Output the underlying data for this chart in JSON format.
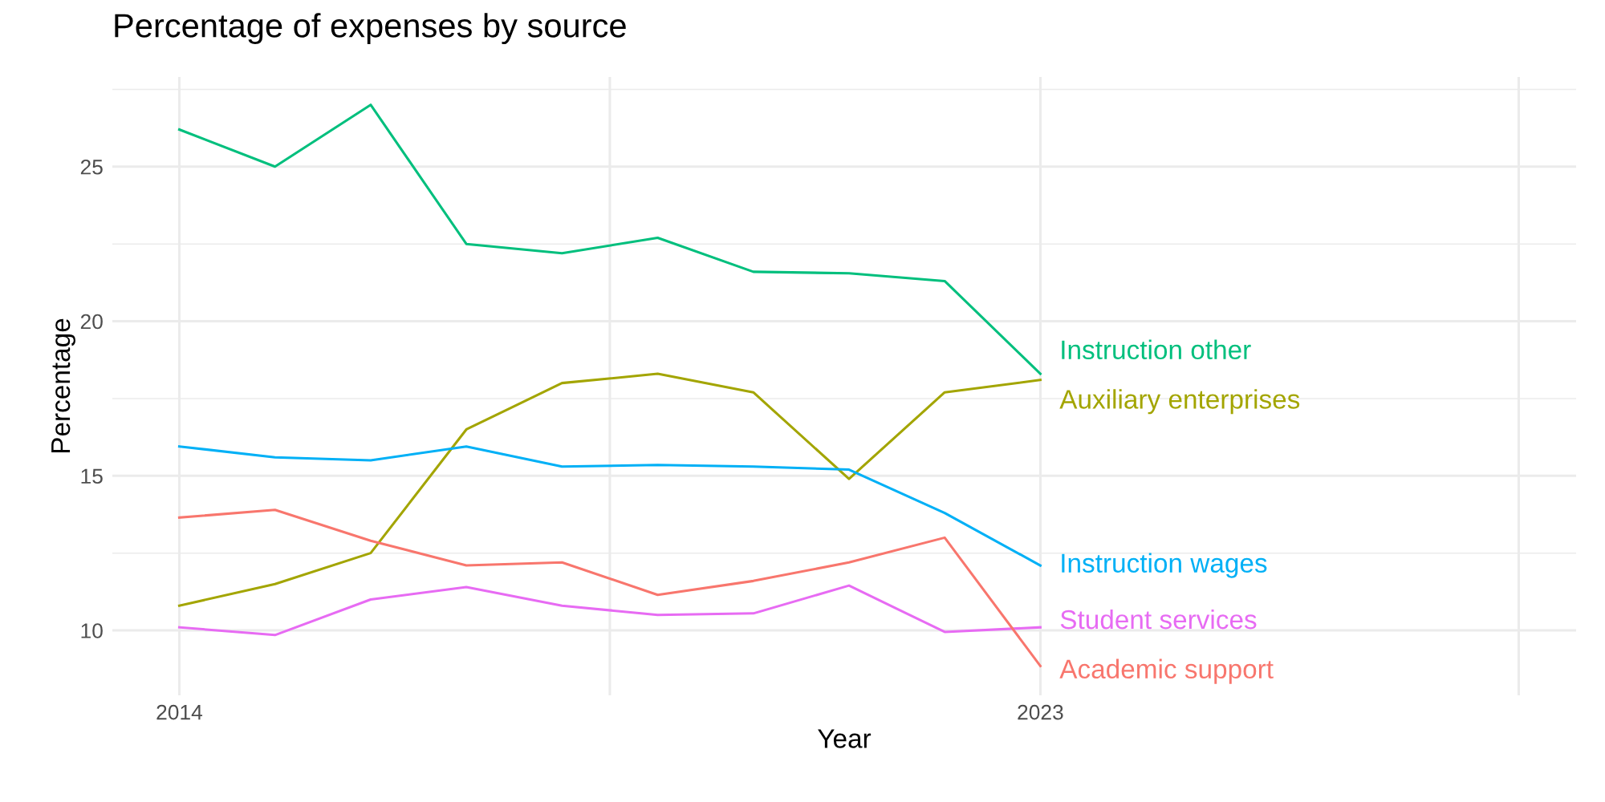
{
  "chart_data": {
    "type": "line",
    "title": "Percentage of expenses by source",
    "xlabel": "Year",
    "ylabel": "Percentage",
    "x": [
      2014,
      2015,
      2016,
      2017,
      2018,
      2019,
      2020,
      2021,
      2022,
      2023
    ],
    "series": [
      {
        "name": "Instruction other",
        "color": "#00bf7d",
        "values": [
          26.2,
          25.0,
          27.0,
          22.5,
          22.2,
          22.7,
          21.6,
          21.55,
          21.3,
          18.3
        ]
      },
      {
        "name": "Auxiliary enterprises",
        "color": "#a3a500",
        "values": [
          10.8,
          11.5,
          12.5,
          16.5,
          18.0,
          18.3,
          17.7,
          14.9,
          17.7,
          18.1
        ]
      },
      {
        "name": "Instruction wages",
        "color": "#00b0f6",
        "values": [
          15.95,
          15.6,
          15.5,
          15.95,
          15.3,
          15.35,
          15.3,
          15.2,
          13.8,
          12.1
        ]
      },
      {
        "name": "Student services",
        "color": "#e76bf3",
        "values": [
          10.1,
          9.85,
          11.0,
          11.4,
          10.8,
          10.5,
          10.55,
          11.45,
          9.95,
          10.1
        ]
      },
      {
        "name": "Academic support",
        "color": "#f8766d",
        "values": [
          13.65,
          13.9,
          12.9,
          12.1,
          12.2,
          11.15,
          11.6,
          12.2,
          13.0,
          8.85
        ]
      }
    ],
    "xlim": [
      2013.3,
      2028.6
    ],
    "xticks": [
      2014,
      {
        "value": 2018.5,
        "label": null
      },
      2023,
      {
        "value": 2028,
        "label": null
      }
    ],
    "ylim": [
      7.9,
      27.9
    ],
    "yticks": [
      10,
      15,
      20,
      25
    ],
    "grid": true,
    "legend": false,
    "line_style": "solid",
    "marker": "none"
  }
}
